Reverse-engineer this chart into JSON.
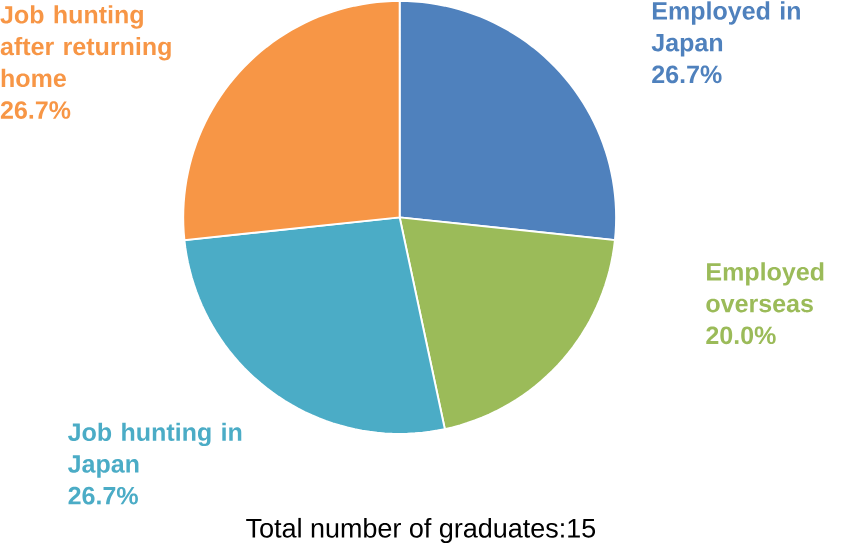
{
  "chart_data": {
    "type": "pie",
    "categories": [
      "Employed in Japan",
      "Employed overseas",
      "Job hunting in Japan",
      "Job hunting after returning home"
    ],
    "values": [
      26.7,
      20.0,
      26.7,
      26.7
    ],
    "colors": [
      "#4f81bd",
      "#9bbb59",
      "#4bacc6",
      "#f79646"
    ],
    "value_labels": [
      "26.7%",
      "20.0%",
      "26.7%",
      "26.7%"
    ],
    "annotations": [
      "Total number of graduates:15"
    ]
  }
}
